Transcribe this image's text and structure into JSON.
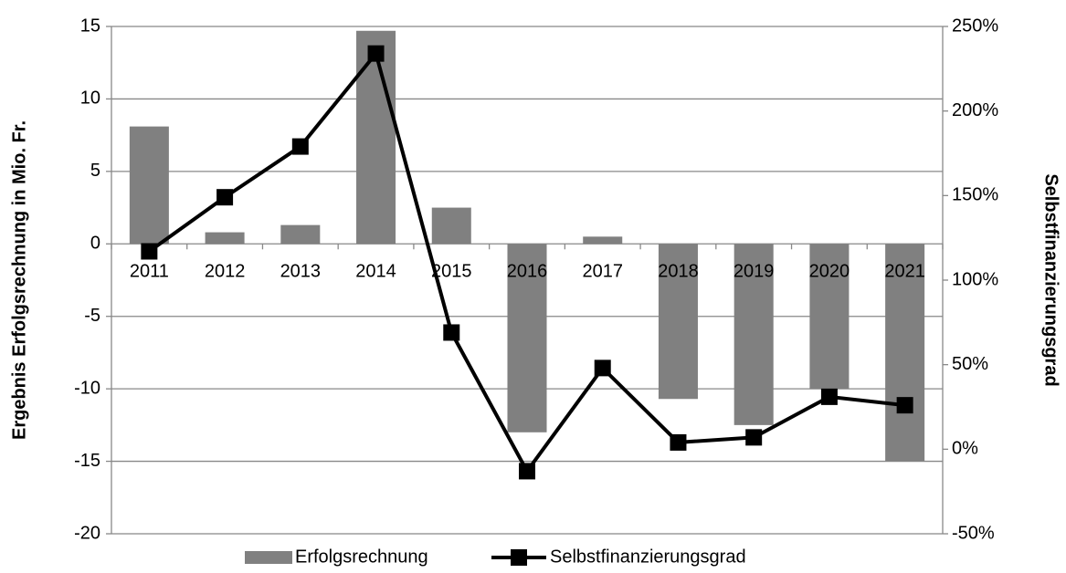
{
  "chart_data": {
    "type": "bar-line",
    "categories": [
      "2011",
      "2012",
      "2013",
      "2014",
      "2015",
      "2016",
      "2017",
      "2018",
      "2019",
      "2020",
      "2021"
    ],
    "series": [
      {
        "name": "Erfolgsrechnung",
        "type": "bar",
        "color": "#808080",
        "values": [
          8.1,
          0.8,
          1.3,
          14.7,
          2.5,
          -13.0,
          0.5,
          -10.7,
          -12.5,
          -10.0,
          -15.0
        ]
      },
      {
        "name": "Selbstfinanzierungsgrad",
        "type": "line",
        "axis": "y2",
        "color": "#000000",
        "values": [
          117,
          149,
          179,
          234,
          69,
          -13,
          48,
          4,
          7,
          31,
          26
        ]
      }
    ],
    "ylabel": "Ergebnis Erfolgsrechnung in Mio. Fr.",
    "y2label": "Selbstfinanzierungsgrad",
    "ylim": [
      -20,
      15
    ],
    "yticks": [
      -20,
      -15,
      -10,
      -5,
      0,
      5,
      10,
      15
    ],
    "y2lim": [
      -50,
      250
    ],
    "y2ticks": [
      {
        "value": -50,
        "label": "-50%"
      },
      {
        "value": 0,
        "label": "0%"
      },
      {
        "value": 50,
        "label": "50%"
      },
      {
        "value": 100,
        "label": "100%"
      },
      {
        "value": 150,
        "label": "150%"
      },
      {
        "value": 200,
        "label": "200%"
      },
      {
        "value": 250,
        "label": "250%"
      }
    ],
    "grid": true,
    "legend": "bottom"
  }
}
